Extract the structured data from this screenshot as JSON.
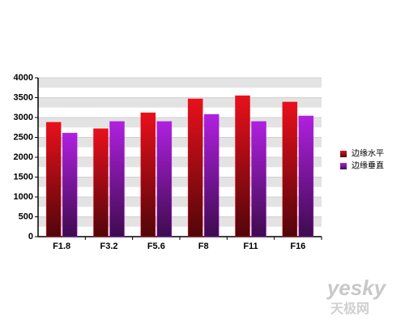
{
  "chart_data": {
    "type": "bar",
    "categories": [
      "F1.8",
      "F3.2",
      "F5.6",
      "F8",
      "F11",
      "F16"
    ],
    "series": [
      {
        "name": "边缘水平",
        "color": "#e8101c",
        "values": [
          2880,
          2720,
          3120,
          3470,
          3550,
          3390
        ]
      },
      {
        "name": "边缘垂直",
        "color": "#b020e0",
        "values": [
          2610,
          2900,
          2900,
          3080,
          2900,
          3040
        ]
      }
    ],
    "ylim": [
      0,
      4000
    ],
    "yticks": [
      0,
      500,
      1000,
      1500,
      2000,
      2500,
      3000,
      3500,
      4000
    ],
    "grid": true,
    "legend": "right",
    "watermark": {
      "logo": "yesky",
      "site": "天极网"
    }
  }
}
